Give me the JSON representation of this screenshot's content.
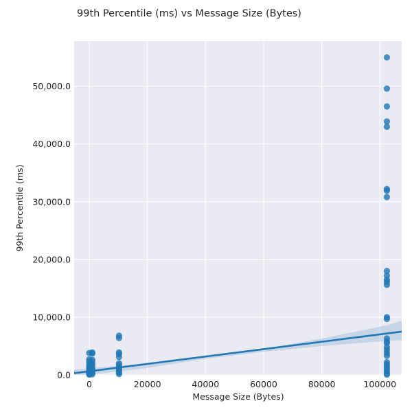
{
  "chart_data": {
    "type": "scatter",
    "title": "99th Percentile (ms) vs Message Size (Bytes)",
    "xlabel": "Message Size (Bytes)",
    "ylabel": "99th Percentile (ms)",
    "xlim": [
      -5200,
      107500
    ],
    "ylim": [
      0,
      57800
    ],
    "x_ticks": [
      0,
      20000,
      40000,
      60000,
      80000,
      100000
    ],
    "x_tick_labels": [
      "0",
      "20000",
      "40000",
      "60000",
      "80000",
      "100000"
    ],
    "y_ticks": [
      0,
      10000,
      20000,
      30000,
      40000,
      50000
    ],
    "y_tick_labels": [
      "0.0",
      "10,000.0",
      "20,000.0",
      "30,000.0",
      "40,000.0",
      "50,000.0"
    ],
    "grid": true,
    "background": "#eaeaf2",
    "point_color": "#1f77b4",
    "line_color": "#1f77b4",
    "band_color": "#1f77b4",
    "regression_line": {
      "x": [
        -5200,
        107500
      ],
      "y": [
        300,
        7500
      ]
    },
    "confidence_band": {
      "x": [
        -5200,
        20000,
        40000,
        60000,
        80000,
        102400,
        107500
      ],
      "upper": [
        900,
        2000,
        3200,
        4500,
        6300,
        8600,
        9400
      ],
      "lower": [
        -300,
        1200,
        2800,
        4000,
        5000,
        5900,
        6000
      ]
    },
    "series": [
      {
        "points": [
          {
            "x": 0,
            "y": 3800
          },
          {
            "x": 0,
            "y": 2700
          },
          {
            "x": 0,
            "y": 2300
          },
          {
            "x": 0,
            "y": 1900
          },
          {
            "x": 0,
            "y": 1500
          },
          {
            "x": 0,
            "y": 1200
          },
          {
            "x": 0,
            "y": 900
          },
          {
            "x": 0,
            "y": 600
          },
          {
            "x": 0,
            "y": 350
          },
          {
            "x": 0,
            "y": 150
          },
          {
            "x": 0,
            "y": 50
          },
          {
            "x": 1024,
            "y": 3900
          },
          {
            "x": 1024,
            "y": 3700
          },
          {
            "x": 1024,
            "y": 2600
          },
          {
            "x": 1024,
            "y": 2200
          },
          {
            "x": 1024,
            "y": 1800
          },
          {
            "x": 1024,
            "y": 1400
          },
          {
            "x": 1024,
            "y": 1000
          },
          {
            "x": 1024,
            "y": 700
          },
          {
            "x": 1024,
            "y": 400
          },
          {
            "x": 1024,
            "y": 100
          },
          {
            "x": 10240,
            "y": 6800
          },
          {
            "x": 10240,
            "y": 6400
          },
          {
            "x": 10240,
            "y": 3900
          },
          {
            "x": 10240,
            "y": 3600
          },
          {
            "x": 10240,
            "y": 3100
          },
          {
            "x": 10240,
            "y": 2000
          },
          {
            "x": 10240,
            "y": 1700
          },
          {
            "x": 10240,
            "y": 1300
          },
          {
            "x": 10240,
            "y": 1000
          },
          {
            "x": 10240,
            "y": 700
          },
          {
            "x": 10240,
            "y": 400
          },
          {
            "x": 10240,
            "y": 150
          },
          {
            "x": 102400,
            "y": 55000
          },
          {
            "x": 102400,
            "y": 49600
          },
          {
            "x": 102400,
            "y": 46500
          },
          {
            "x": 102400,
            "y": 43900
          },
          {
            "x": 102400,
            "y": 43000
          },
          {
            "x": 102400,
            "y": 32200
          },
          {
            "x": 102400,
            "y": 31900
          },
          {
            "x": 102400,
            "y": 30800
          },
          {
            "x": 102400,
            "y": 18000
          },
          {
            "x": 102400,
            "y": 17200
          },
          {
            "x": 102400,
            "y": 16500
          },
          {
            "x": 102400,
            "y": 16100
          },
          {
            "x": 102400,
            "y": 15600
          },
          {
            "x": 102400,
            "y": 10000
          },
          {
            "x": 102400,
            "y": 9700
          },
          {
            "x": 102400,
            "y": 6300
          },
          {
            "x": 102400,
            "y": 5800
          },
          {
            "x": 102400,
            "y": 5500
          },
          {
            "x": 102400,
            "y": 4800
          },
          {
            "x": 102400,
            "y": 4300
          },
          {
            "x": 102400,
            "y": 3800
          },
          {
            "x": 102400,
            "y": 3300
          },
          {
            "x": 102400,
            "y": 2200
          },
          {
            "x": 102400,
            "y": 1800
          },
          {
            "x": 102400,
            "y": 1400
          },
          {
            "x": 102400,
            "y": 1000
          },
          {
            "x": 102400,
            "y": 600
          },
          {
            "x": 102400,
            "y": 250
          },
          {
            "x": 102400,
            "y": 50
          }
        ]
      }
    ]
  }
}
